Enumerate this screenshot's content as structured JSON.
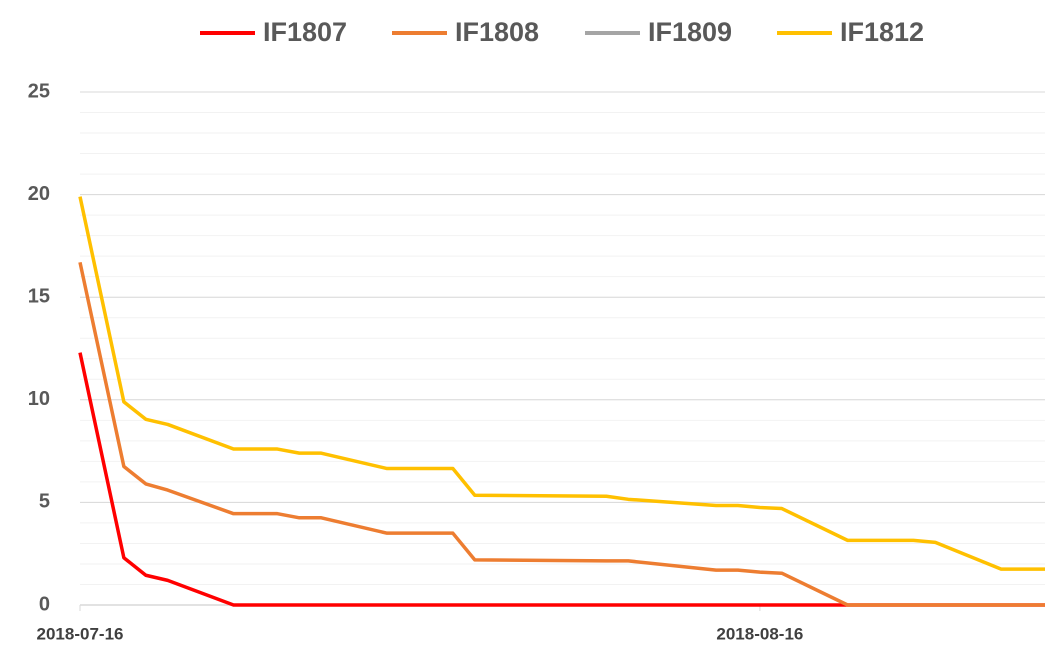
{
  "chart_data": {
    "type": "line",
    "x": [
      "2018-07-16",
      "2018-07-18",
      "2018-07-19",
      "2018-07-20",
      "2018-07-23",
      "2018-07-25",
      "2018-07-26",
      "2018-07-27",
      "2018-07-30",
      "2018-08-02",
      "2018-08-03",
      "2018-08-09",
      "2018-08-10",
      "2018-08-14",
      "2018-08-15",
      "2018-08-16",
      "2018-08-17",
      "2018-08-20",
      "2018-08-23",
      "2018-08-24",
      "2018-08-27",
      "2018-08-29"
    ],
    "series": [
      {
        "name": "IF1807",
        "color": "#ff0000",
        "values": [
          12.3,
          2.3,
          1.45,
          1.2,
          0,
          0,
          0,
          0,
          0,
          0,
          0,
          0,
          0,
          0,
          0,
          0,
          0,
          0,
          0,
          0,
          0,
          0
        ]
      },
      {
        "name": "IF1808",
        "color": "#ed7d31",
        "values": [
          16.7,
          6.75,
          5.9,
          5.6,
          4.45,
          4.45,
          4.25,
          4.25,
          3.5,
          3.5,
          2.2,
          2.15,
          2.15,
          1.7,
          1.7,
          1.6,
          1.55,
          0,
          0,
          0,
          0,
          0
        ]
      },
      {
        "name": "IF1809",
        "color": "#a5a5a5",
        "values": [
          null,
          null,
          null,
          null,
          null,
          null,
          null,
          null,
          null,
          null,
          null,
          null,
          null,
          null,
          null,
          null,
          null,
          null,
          null,
          null,
          null,
          null
        ]
      },
      {
        "name": "IF1812",
        "color": "#ffc000",
        "values": [
          19.9,
          9.9,
          9.05,
          8.8,
          7.6,
          7.6,
          7.4,
          7.4,
          6.65,
          6.65,
          5.35,
          5.3,
          5.15,
          4.85,
          4.85,
          4.75,
          4.7,
          3.15,
          3.15,
          3.05,
          1.75,
          1.75
        ]
      }
    ],
    "xlim": [
      "2018-07-16",
      "2018-08-29"
    ],
    "xticks": [
      "2018-07-16",
      "2018-08-16"
    ],
    "ylim": [
      0,
      25
    ],
    "yticks": [
      0,
      5,
      10,
      15,
      20,
      25
    ],
    "grid": true,
    "minor_grid": true,
    "legend": "top"
  }
}
